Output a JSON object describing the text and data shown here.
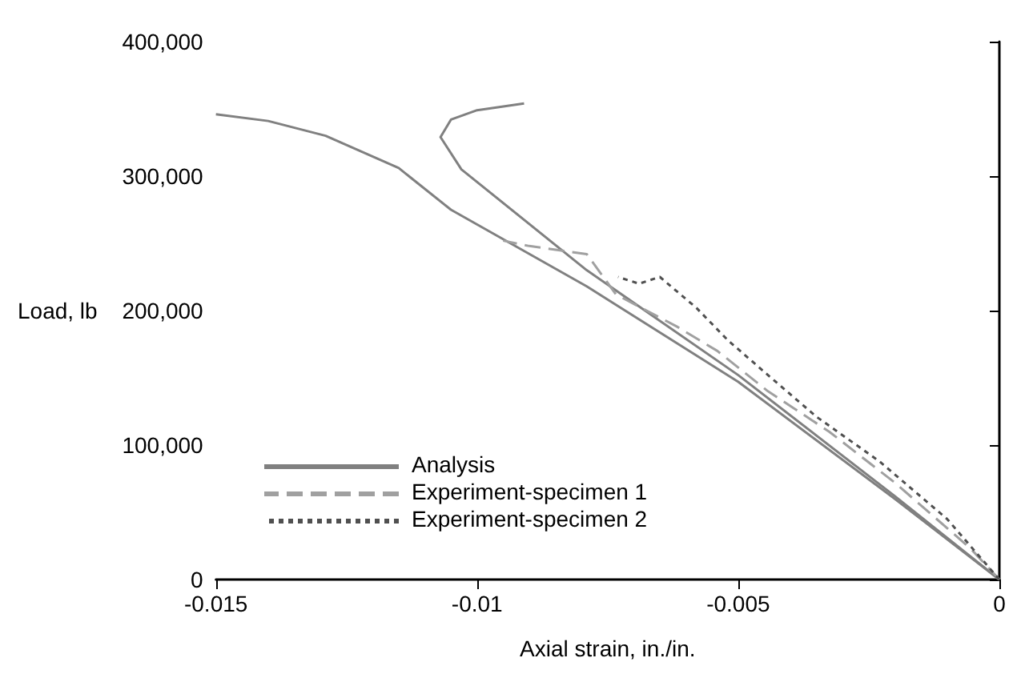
{
  "chart_data": {
    "type": "line",
    "xlabel": "Axial strain, in./in.",
    "ylabel": "Load, lb",
    "xlim": [
      -0.015,
      0
    ],
    "xticks": [
      -0.015,
      -0.01,
      -0.005,
      0
    ],
    "ylim": [
      0,
      400000
    ],
    "yticks": [
      {
        "value": 0,
        "label": "0"
      },
      {
        "value": 100000,
        "label": "100,000"
      },
      {
        "value": 200000,
        "label": "200,000"
      },
      {
        "value": 300000,
        "label": "300,000"
      },
      {
        "value": 400000,
        "label": "400,000"
      }
    ],
    "grid": false,
    "legend": "bottom left",
    "marker": "none",
    "series": [
      {
        "name": "Analysis",
        "color": "#808080",
        "line_style": "solid",
        "x": [
          0,
          -0.002,
          -0.005,
          -0.0079,
          -0.0105,
          -0.0115,
          -0.0129,
          -0.014,
          -0.015
        ],
        "values": [
          0,
          60000,
          147000,
          218000,
          275000,
          306000,
          330000,
          341000,
          346000
        ]
      },
      {
        "color": "#808080",
        "line_style": "solid",
        "x": [
          0,
          -0.002,
          -0.005,
          -0.0079,
          -0.0103,
          -0.0107,
          -0.0105,
          -0.01,
          -0.0091
        ],
        "values": [
          0,
          62000,
          152000,
          230000,
          305000,
          329000,
          342000,
          349000,
          354000
        ]
      },
      {
        "name": "Experiment-specimen 1",
        "color": "#a0a0a0",
        "line_style": "dashed",
        "x": [
          0,
          -0.00055,
          -0.002,
          -0.00326,
          -0.00443,
          -0.0054,
          -0.00617,
          -0.00734,
          -0.0079,
          -0.009,
          -0.0095
        ],
        "values": [
          0,
          23000,
          72000,
          110000,
          140000,
          170000,
          188000,
          212000,
          242000,
          248000,
          252000
        ]
      },
      {
        "name": "Experiment-specimen 2",
        "color": "#505050",
        "line_style": "dotted",
        "x": [
          0,
          -0.001,
          -0.0023,
          -0.0035,
          -0.0044,
          -0.0052,
          -0.0058,
          -0.0065,
          -0.0069,
          -0.0073
        ],
        "values": [
          0,
          45000,
          88000,
          121000,
          151000,
          178000,
          202000,
          225000,
          220000,
          225000
        ]
      }
    ]
  }
}
